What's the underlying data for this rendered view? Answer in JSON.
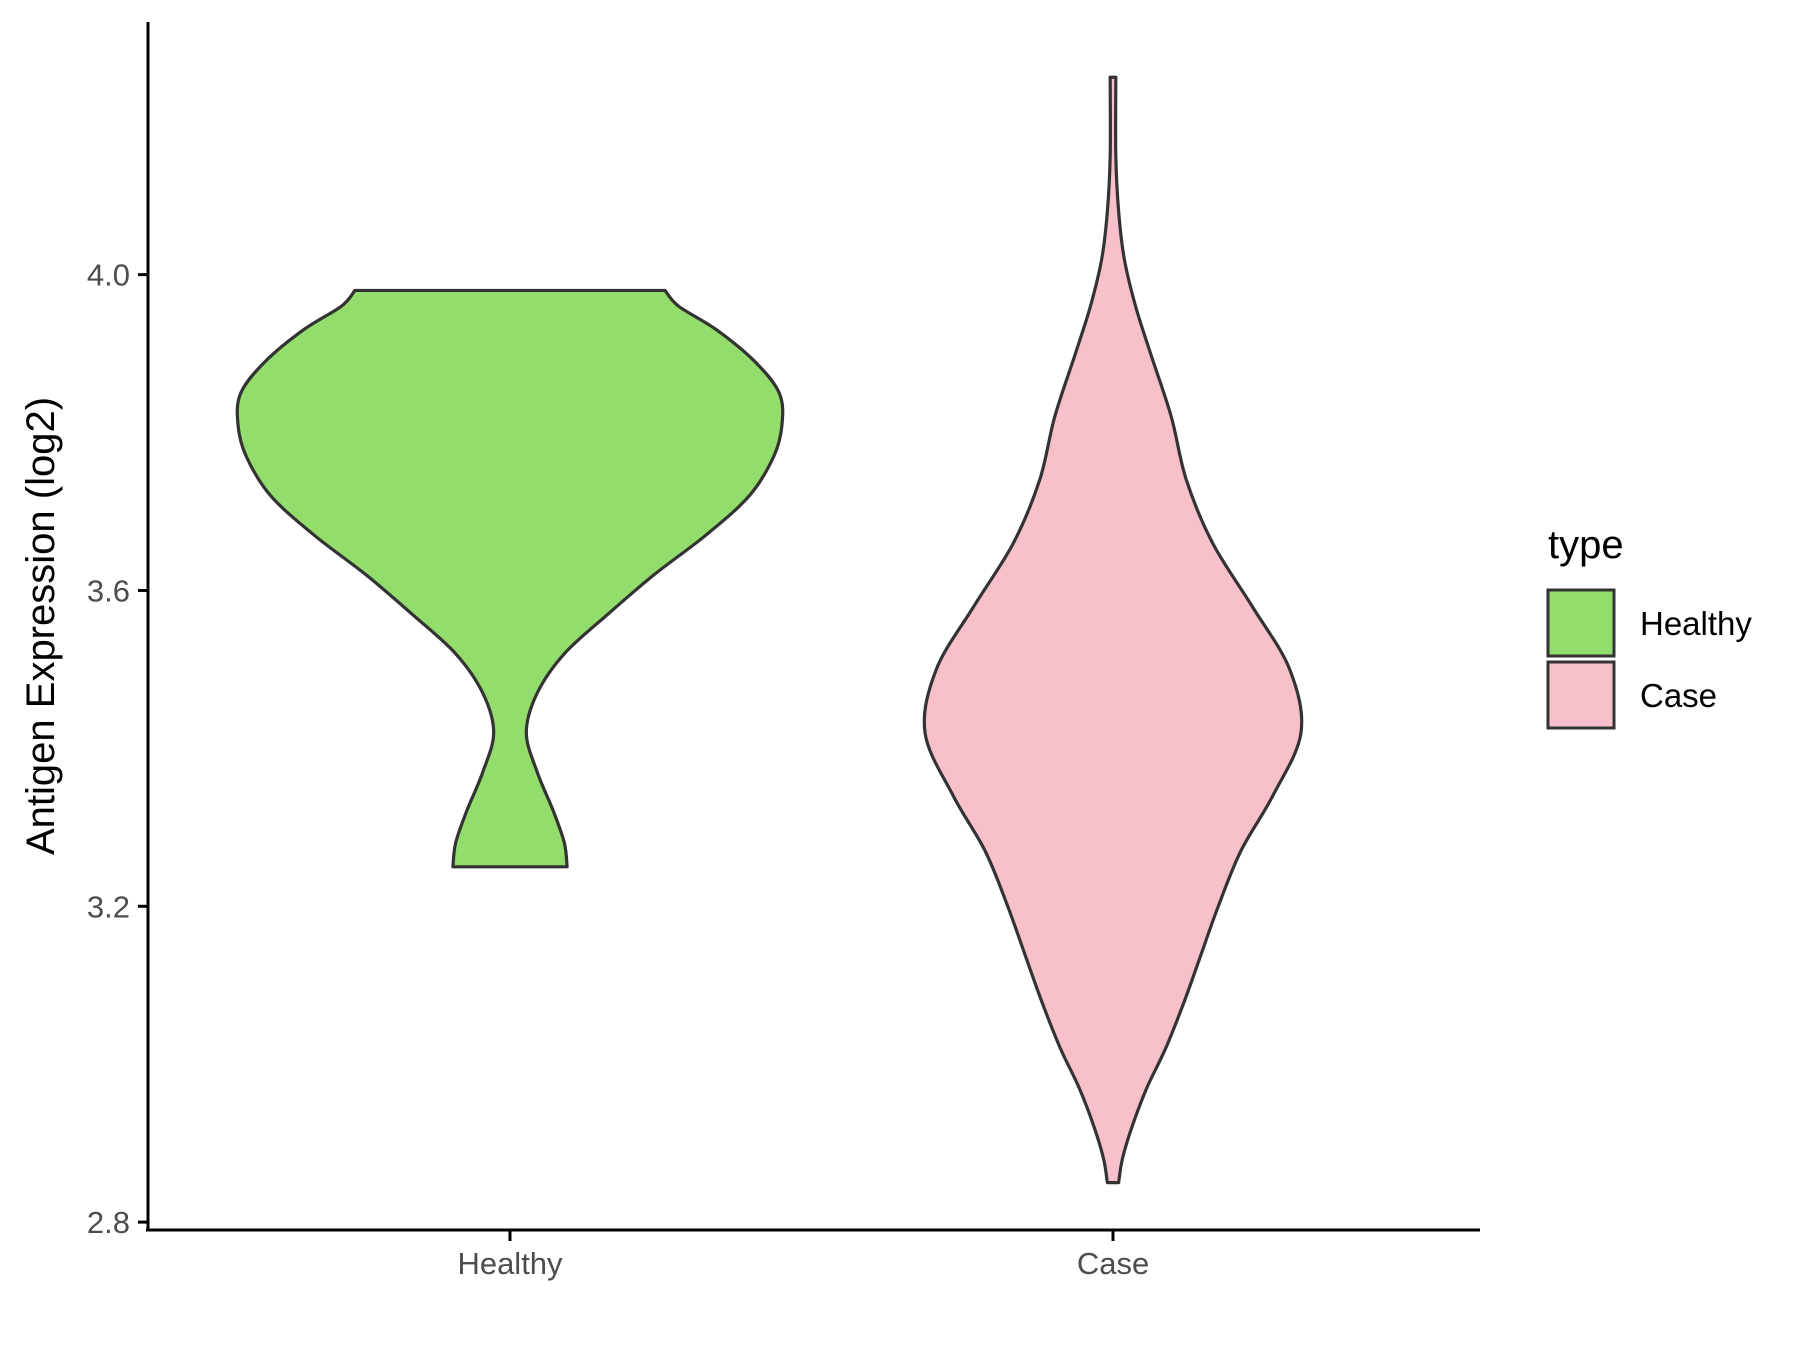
{
  "chart_data": {
    "type": "violin",
    "ylabel": "Antigen Expression (log2)",
    "xlabel": "",
    "title": "",
    "categories": [
      "Healthy",
      "Case"
    ],
    "ylim": [
      2.79,
      4.32
    ],
    "yticks": [
      2.8,
      3.2,
      3.6,
      4.0
    ],
    "ytick_labels": [
      "2.8",
      "3.2",
      "3.6",
      "4.0"
    ],
    "grid": false,
    "legend": {
      "title": "type",
      "position": "right",
      "entries": [
        {
          "label": "Healthy",
          "color": "#93dd6c"
        },
        {
          "label": "Case",
          "color": "#f8c0cb"
        }
      ]
    },
    "series": [
      {
        "category": "Healthy",
        "color": "#93dd6c",
        "min": 3.25,
        "max": 3.98,
        "density_profile": [
          [
            3.25,
            0.21
          ],
          [
            3.28,
            0.2
          ],
          [
            3.32,
            0.16
          ],
          [
            3.37,
            0.1
          ],
          [
            3.42,
            0.06
          ],
          [
            3.47,
            0.1
          ],
          [
            3.52,
            0.2
          ],
          [
            3.57,
            0.36
          ],
          [
            3.62,
            0.53
          ],
          [
            3.67,
            0.72
          ],
          [
            3.72,
            0.88
          ],
          [
            3.77,
            0.97
          ],
          [
            3.81,
            1.0
          ],
          [
            3.85,
            0.99
          ],
          [
            3.89,
            0.9
          ],
          [
            3.93,
            0.76
          ],
          [
            3.96,
            0.62
          ],
          [
            3.98,
            0.57
          ]
        ]
      },
      {
        "category": "Case",
        "color": "#f8c0cb",
        "min": 2.85,
        "max": 4.25,
        "density_profile": [
          [
            2.85,
            0.03
          ],
          [
            2.88,
            0.05
          ],
          [
            2.92,
            0.1
          ],
          [
            2.97,
            0.18
          ],
          [
            3.02,
            0.28
          ],
          [
            3.08,
            0.38
          ],
          [
            3.14,
            0.47
          ],
          [
            3.2,
            0.56
          ],
          [
            3.27,
            0.68
          ],
          [
            3.34,
            0.85
          ],
          [
            3.42,
            1.0
          ],
          [
            3.5,
            0.94
          ],
          [
            3.58,
            0.74
          ],
          [
            3.66,
            0.53
          ],
          [
            3.74,
            0.39
          ],
          [
            3.82,
            0.31
          ],
          [
            3.9,
            0.2
          ],
          [
            3.96,
            0.12
          ],
          [
            4.02,
            0.06
          ],
          [
            4.08,
            0.03
          ],
          [
            4.15,
            0.015
          ],
          [
            4.25,
            0.015
          ]
        ]
      }
    ]
  }
}
